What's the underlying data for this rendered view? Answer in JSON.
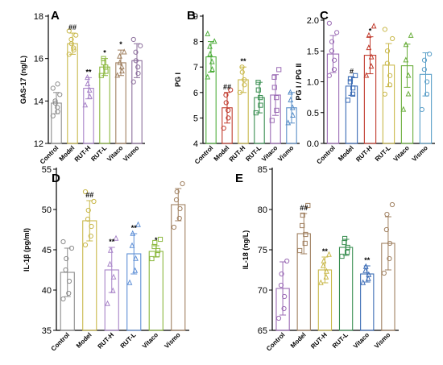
{
  "colors": {
    "Control": "#8c8c8c",
    "Model": "#c9b84a",
    "RUT-H": "#a884c8",
    "RUT-L": "#5e8fd6",
    "Vitaco": "#8ab73c",
    "Vismo": "#a08060"
  },
  "chart_data": [
    {
      "panel": "A",
      "type": "bar",
      "ylabel": "GAS-17 (ng/L)",
      "ylim": [
        12,
        18
      ],
      "yticks": [
        12,
        14,
        16,
        18
      ],
      "categories": [
        "Control",
        "Model",
        "RUT-H",
        "RUT-L",
        "Vitaco",
        "Vismo"
      ],
      "colors": [
        "#8c8c8c",
        "#c9b84a",
        "#a884c8",
        "#8ab73c",
        "#a08060",
        "#8c6f9c"
      ],
      "markers": [
        "circle",
        "circle",
        "triangle",
        "square",
        "triangle",
        "circle"
      ],
      "values": [
        13.9,
        16.7,
        14.6,
        15.6,
        15.8,
        15.9
      ],
      "errors": [
        0.5,
        0.5,
        0.5,
        0.4,
        0.6,
        0.8
      ],
      "significance": [
        "",
        "##",
        "**",
        "*",
        "*",
        ""
      ],
      "points": [
        [
          13.3,
          13.5,
          13.7,
          13.9,
          14.0,
          14.3,
          14.6,
          14.8
        ],
        [
          16.2,
          16.4,
          16.5,
          16.7,
          16.9,
          17.1,
          17.3
        ],
        [
          13.8,
          14.2,
          14.5,
          14.8,
          15.1
        ],
        [
          15.2,
          15.4,
          15.6,
          15.8,
          16.0
        ],
        [
          15.2,
          15.4,
          15.6,
          15.8,
          16.1,
          16.3
        ],
        [
          14.9,
          15.3,
          15.6,
          15.9,
          16.3,
          16.6,
          16.9
        ]
      ]
    },
    {
      "panel": "B",
      "type": "bar",
      "ylabel": "PG I",
      "ylim": [
        4,
        9
      ],
      "yticks": [
        4,
        5,
        6,
        7,
        8,
        9
      ],
      "categories": [
        "Control",
        "Model",
        "RUT-H",
        "RUT-L",
        "Vitaco",
        "Vismo"
      ],
      "colors": [
        "#4fae3c",
        "#c0392b",
        "#c9b84a",
        "#3a8f52",
        "#9b6bb5",
        "#5a8fc8"
      ],
      "markers": [
        "triangle",
        "circle",
        "circle",
        "square",
        "square",
        "triangle"
      ],
      "values": [
        7.4,
        5.4,
        6.5,
        5.8,
        5.9,
        5.4
      ],
      "errors": [
        0.6,
        0.6,
        0.5,
        0.6,
        0.8,
        0.6
      ],
      "significance": [
        "",
        "##",
        "**",
        "",
        "",
        ""
      ],
      "points": [
        [
          6.6,
          6.9,
          7.2,
          7.5,
          7.8,
          8.0,
          8.3
        ],
        [
          4.6,
          5.0,
          5.3,
          5.6,
          5.9,
          6.1
        ],
        [
          6.0,
          6.3,
          6.5,
          6.8,
          7.0
        ],
        [
          5.2,
          5.5,
          5.8,
          6.1,
          6.4
        ],
        [
          4.9,
          5.3,
          5.8,
          6.2,
          6.6,
          6.9
        ],
        [
          4.8,
          5.1,
          5.4,
          5.7,
          6.0
        ]
      ]
    },
    {
      "panel": "C",
      "type": "bar",
      "ylabel": "PG I / PG II",
      "ylim": [
        0,
        2
      ],
      "yticks": [
        0,
        0.5,
        1.0,
        1.5,
        2.0
      ],
      "categories": [
        "Control",
        "Model",
        "RUT-H",
        "RUT-L",
        "Vitaco",
        "Vismo"
      ],
      "colors": [
        "#9b6bb5",
        "#3a6bb5",
        "#c0392b",
        "#c9b84a",
        "#6aae3c",
        "#5a9fc8"
      ],
      "markers": [
        "circle",
        "square",
        "triangle",
        "circle",
        "triangle",
        "circle"
      ],
      "values": [
        1.45,
        0.93,
        1.43,
        1.27,
        1.26,
        1.12
      ],
      "errors": [
        0.3,
        0.15,
        0.3,
        0.35,
        0.35,
        0.35
      ],
      "significance": [
        "",
        "#",
        "*",
        "",
        "",
        ""
      ],
      "points": [
        [
          1.1,
          1.2,
          1.35,
          1.5,
          1.65,
          1.8,
          1.95
        ],
        [
          0.7,
          0.8,
          0.9,
          1.0,
          1.05,
          1.1
        ],
        [
          1.1,
          1.25,
          1.4,
          1.55,
          1.75,
          1.9
        ],
        [
          0.8,
          0.95,
          1.1,
          1.3,
          1.5,
          1.7,
          1.85
        ],
        [
          0.55,
          0.8,
          1.1,
          1.35,
          1.6,
          1.75
        ],
        [
          0.55,
          0.8,
          1.0,
          1.2,
          1.35,
          1.45
        ]
      ]
    },
    {
      "panel": "D",
      "type": "bar",
      "ylabel": "IL-1β (pg/ml)",
      "ylim": [
        35,
        55
      ],
      "yticks": [
        35,
        40,
        45,
        50,
        55
      ],
      "categories": [
        "Control",
        "Model",
        "RUT-H",
        "RUT-L",
        "Vitaco",
        "Vismo"
      ],
      "colors": [
        "#8c8c8c",
        "#c9b84a",
        "#a884c8",
        "#5e8fd6",
        "#8ab73c",
        "#a08060"
      ],
      "markers": [
        "circle",
        "circle",
        "triangle",
        "triangle",
        "square",
        "circle"
      ],
      "values": [
        42.2,
        48.6,
        42.5,
        44.5,
        44.8,
        50.6
      ],
      "errors": [
        3.0,
        2.5,
        2.8,
        2.5,
        0.7,
        2.0
      ],
      "significance": [
        "",
        "##",
        "**",
        "**",
        "*",
        ""
      ],
      "points": [
        [
          38.9,
          39.6,
          41.1,
          42.5,
          43.9,
          45.2,
          46.0
        ],
        [
          45.6,
          46.7,
          47.9,
          48.8,
          49.9,
          51.0,
          52.2
        ],
        [
          38.3,
          39.9,
          41.6,
          43.2,
          44.9,
          46.4
        ],
        [
          40.9,
          42.4,
          43.9,
          45.5,
          47.0,
          48.1
        ],
        [
          43.9,
          44.4,
          44.9,
          45.4,
          45.9,
          46.3
        ],
        [
          47.8,
          48.9,
          50.1,
          51.2,
          52.2,
          53.2
        ]
      ]
    },
    {
      "panel": "E",
      "type": "bar",
      "ylabel": "IL-18  (ng/L)",
      "ylim": [
        65,
        85
      ],
      "yticks": [
        65,
        70,
        75,
        80,
        85
      ],
      "categories": [
        "Control",
        "Model",
        "RUT-H",
        "RUT-L",
        "Vitaco",
        "Vismo"
      ],
      "colors": [
        "#9b6bb5",
        "#a08060",
        "#c9b84a",
        "#3a8f52",
        "#3a6bb5",
        "#a08060"
      ],
      "markers": [
        "circle",
        "square",
        "triangle",
        "square",
        "triangle",
        "circle"
      ],
      "values": [
        70.2,
        77.0,
        72.5,
        75.3,
        72.0,
        75.8
      ],
      "errors": [
        3.3,
        2.5,
        1.6,
        1.0,
        1.0,
        3.3
      ],
      "significance": [
        "",
        "##",
        "**",
        "",
        "**",
        ""
      ],
      "points": [
        [
          66.5,
          67.7,
          69.2,
          70.6,
          72.0,
          73.6
        ],
        [
          74.9,
          75.8,
          76.9,
          78.0,
          79.3,
          80.5
        ],
        [
          70.9,
          71.6,
          72.3,
          73.0,
          73.6,
          74.4
        ],
        [
          74.2,
          74.7,
          75.3,
          75.9,
          76.4
        ],
        [
          70.9,
          71.4,
          71.9,
          72.4,
          72.9
        ],
        [
          72.1,
          73.9,
          75.8,
          77.5,
          79.4,
          80.6
        ]
      ]
    }
  ]
}
